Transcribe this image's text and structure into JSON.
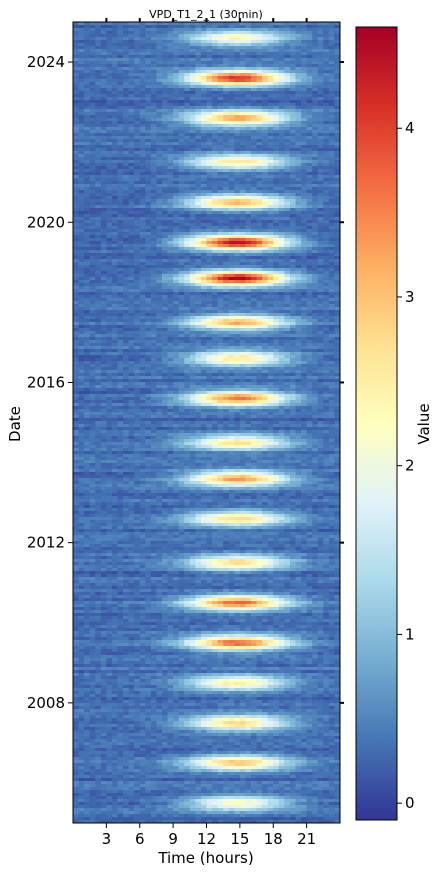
{
  "chart_data": {
    "type": "heatmap",
    "title": "VPD_T1_2_1 (30min)",
    "xlabel": "Time (hours)",
    "ylabel": "Date",
    "x_ticks": [
      3,
      6,
      9,
      12,
      15,
      18,
      21
    ],
    "x_tick_labels": [
      "3",
      "6",
      "9",
      "12",
      "15",
      "18",
      "21"
    ],
    "xlim": [
      0,
      24
    ],
    "y_ticks": [
      2008,
      2012,
      2016,
      2020,
      2024
    ],
    "y_tick_labels": [
      "2008",
      "2012",
      "2016",
      "2020",
      "2024"
    ],
    "ylim": [
      2005.0,
      2025.0
    ],
    "colorbar": {
      "label": "Value",
      "colormap": "RdYlBu_r",
      "range": [
        -0.1,
        4.6
      ],
      "ticks": [
        0,
        1,
        2,
        3,
        4
      ],
      "tick_labels": [
        "0",
        "1",
        "2",
        "3",
        "4"
      ]
    },
    "pattern": {
      "peak_hour": 14.8,
      "summer_peaks": [
        {
          "year": 2005.5,
          "peak": 2.0
        },
        {
          "year": 2006.5,
          "peak": 2.6
        },
        {
          "year": 2007.5,
          "peak": 2.5
        },
        {
          "year": 2008.5,
          "peak": 2.2
        },
        {
          "year": 2009.5,
          "peak": 3.3
        },
        {
          "year": 2010.5,
          "peak": 3.3
        },
        {
          "year": 2011.5,
          "peak": 2.4
        },
        {
          "year": 2012.6,
          "peak": 2.4
        },
        {
          "year": 2013.6,
          "peak": 3.0
        },
        {
          "year": 2014.5,
          "peak": 2.3
        },
        {
          "year": 2015.6,
          "peak": 3.3
        },
        {
          "year": 2016.6,
          "peak": 2.4
        },
        {
          "year": 2017.5,
          "peak": 2.8
        },
        {
          "year": 2018.6,
          "peak": 4.2
        },
        {
          "year": 2019.5,
          "peak": 4.2
        },
        {
          "year": 2020.5,
          "peak": 2.9
        },
        {
          "year": 2021.5,
          "peak": 2.3
        },
        {
          "year": 2022.6,
          "peak": 3.0
        },
        {
          "year": 2023.6,
          "peak": 3.8
        },
        {
          "year": 2024.6,
          "peak": 2.0
        }
      ]
    }
  }
}
